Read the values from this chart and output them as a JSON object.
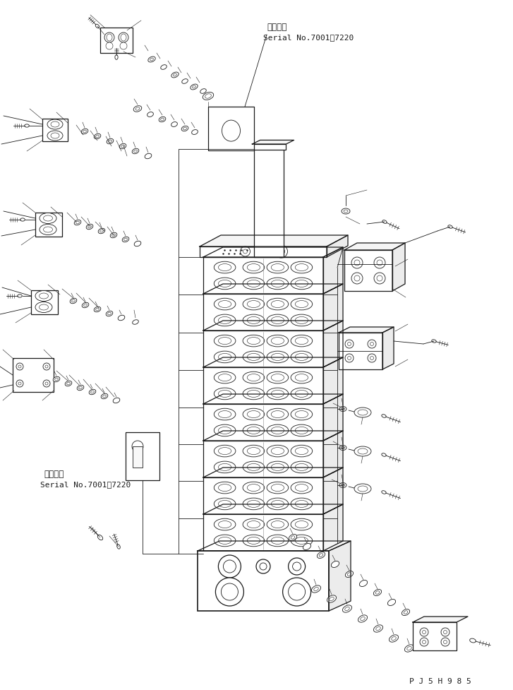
{
  "bg_color": "#ffffff",
  "lc": "#1a1a1a",
  "text_color": "#1a1a1a",
  "fig_width": 7.27,
  "fig_height": 9.78,
  "dpi": 100,
  "serial_top_line1": "適用号機",
  "serial_top_line2": "Serial No.7001～7220",
  "serial_bot_line1": "適用号機",
  "serial_bot_line2": "Serial No.7001～7220",
  "watermark": "P J 5 H 9 8 5"
}
